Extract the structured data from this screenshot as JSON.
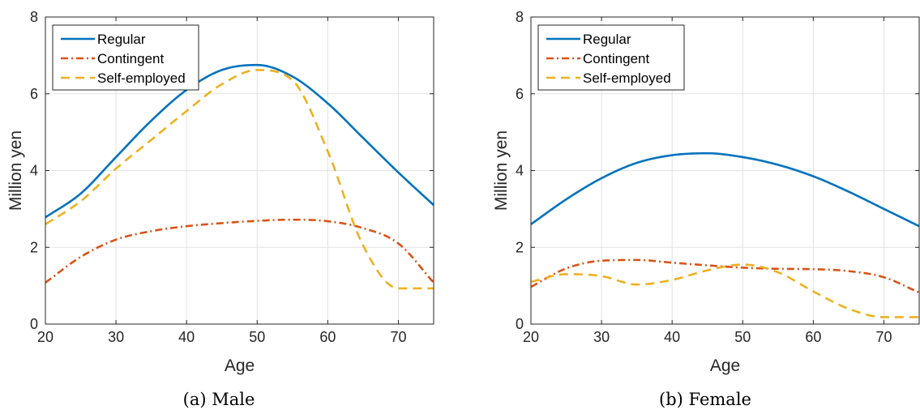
{
  "colors": {
    "regular": "#0072BD",
    "contingent": "#D95319",
    "self_employed": "#EDB120"
  },
  "chart_data": [
    {
      "type": "line",
      "caption": "(a) Male",
      "xlabel": "Age",
      "ylabel": "Million yen",
      "xlim": [
        20,
        75
      ],
      "ylim": [
        0,
        8
      ],
      "xticks": [
        20,
        30,
        40,
        50,
        60,
        70
      ],
      "yticks": [
        0,
        2,
        4,
        6,
        8
      ],
      "grid": true,
      "legend": "top-left",
      "x": [
        20,
        25,
        30,
        35,
        40,
        45,
        50,
        55,
        60,
        65,
        70,
        75
      ],
      "series": [
        {
          "name": "Regular",
          "style": "solid",
          "color": "#0072BD",
          "values": [
            2.78,
            3.4,
            4.35,
            5.3,
            6.1,
            6.62,
            6.75,
            6.45,
            5.75,
            4.85,
            3.95,
            3.1
          ]
        },
        {
          "name": "Contingent",
          "style": "dashdot",
          "color": "#D95319",
          "values": [
            1.08,
            1.75,
            2.2,
            2.42,
            2.55,
            2.63,
            2.69,
            2.72,
            2.68,
            2.5,
            2.1,
            1.08
          ]
        },
        {
          "name": "Self-employed",
          "style": "dashed",
          "color": "#EDB120",
          "values": [
            2.6,
            3.2,
            4.05,
            4.8,
            5.55,
            6.25,
            6.62,
            6.35,
            4.5,
            2.05,
            0.93,
            0.93
          ]
        }
      ]
    },
    {
      "type": "line",
      "caption": "(b) Female",
      "xlabel": "Age",
      "ylabel": "Million yen",
      "xlim": [
        20,
        75
      ],
      "ylim": [
        0,
        8
      ],
      "xticks": [
        20,
        30,
        40,
        50,
        60,
        70
      ],
      "yticks": [
        0,
        2,
        4,
        6,
        8
      ],
      "grid": true,
      "legend": "top-left",
      "x": [
        20,
        25,
        30,
        35,
        40,
        45,
        50,
        55,
        60,
        65,
        70,
        75
      ],
      "series": [
        {
          "name": "Regular",
          "style": "solid",
          "color": "#0072BD",
          "values": [
            2.6,
            3.25,
            3.8,
            4.2,
            4.4,
            4.45,
            4.35,
            4.15,
            3.85,
            3.45,
            3.0,
            2.55
          ]
        },
        {
          "name": "Contingent",
          "style": "dashdot",
          "color": "#D95319",
          "values": [
            0.97,
            1.45,
            1.65,
            1.67,
            1.6,
            1.53,
            1.47,
            1.44,
            1.43,
            1.38,
            1.22,
            0.82
          ]
        },
        {
          "name": "Self-employed",
          "style": "dashed",
          "color": "#EDB120",
          "values": [
            1.1,
            1.3,
            1.25,
            1.03,
            1.15,
            1.4,
            1.55,
            1.35,
            0.85,
            0.4,
            0.18,
            0.18
          ]
        }
      ]
    }
  ]
}
